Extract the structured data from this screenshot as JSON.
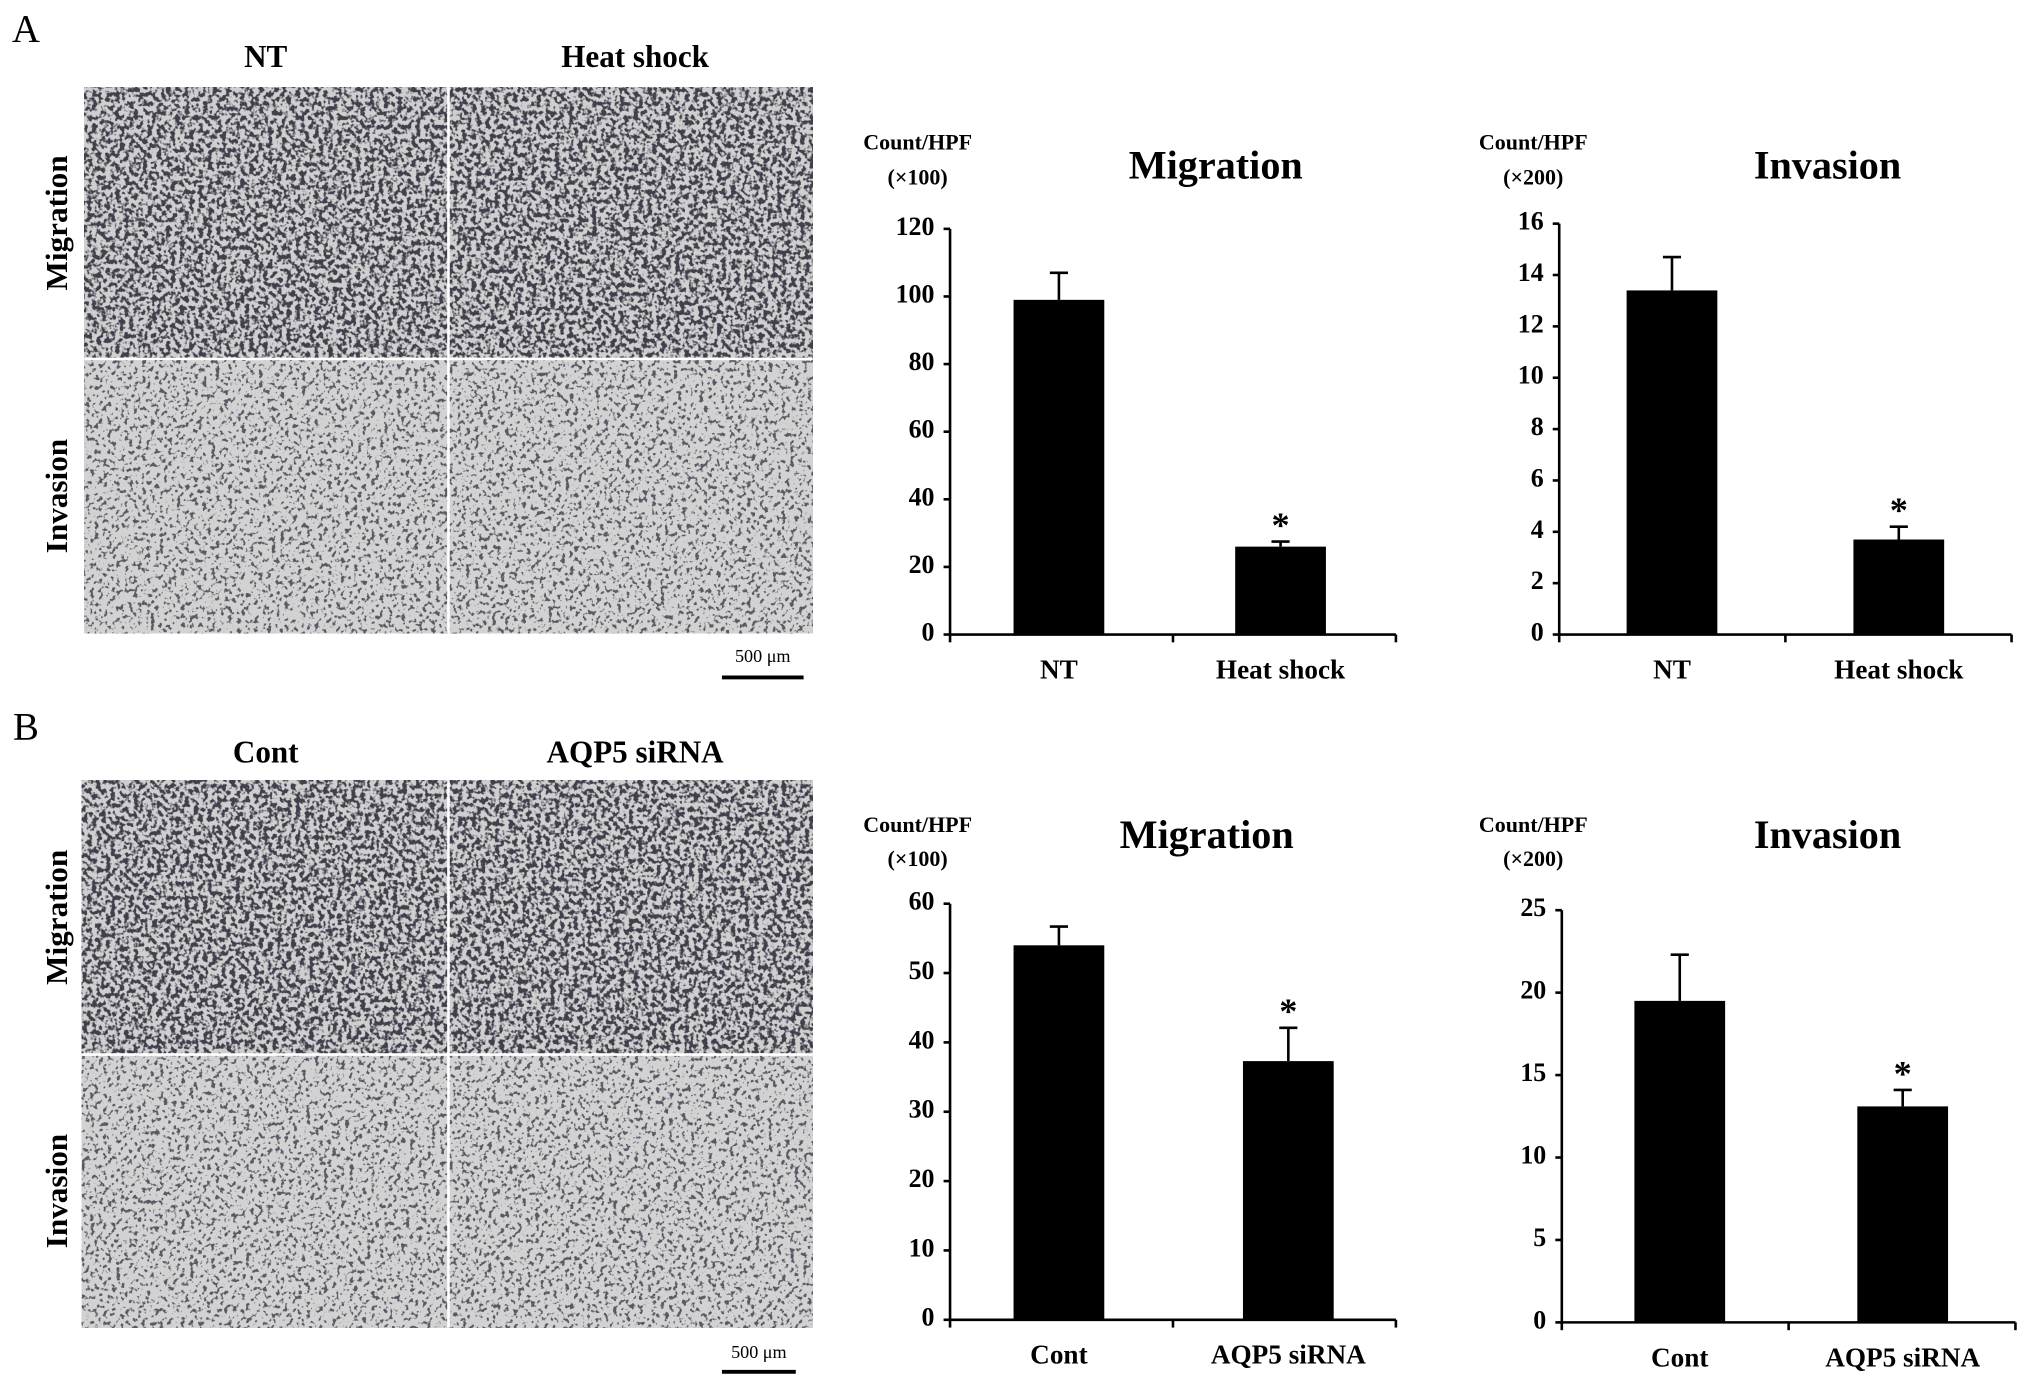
{
  "panels": [
    {
      "label": "A",
      "columns": [
        "NT",
        "Heat shock"
      ],
      "rows": [
        "Migration",
        "Invasion"
      ],
      "scale_bar": "500 μm"
    },
    {
      "label": "B",
      "columns": [
        "Cont",
        "AQP5 siRNA"
      ],
      "rows": [
        "Migration",
        "Invasion"
      ],
      "scale_bar": "500 μm"
    }
  ],
  "chart_data": [
    {
      "type": "bar",
      "title": "Migration",
      "y_label": [
        "Count/HPF",
        "(×100)"
      ],
      "categories": [
        "NT",
        "Heat shock"
      ],
      "values": [
        99,
        26
      ],
      "errors": [
        8,
        1.5
      ],
      "annotations": [
        null,
        "*"
      ],
      "color": "#000000",
      "ylim": [
        0,
        120
      ],
      "yticks": [
        0,
        20,
        40,
        60,
        80,
        100,
        120
      ]
    },
    {
      "type": "bar",
      "title": "Invasion",
      "y_label": [
        "Count/HPF",
        "(×200)"
      ],
      "categories": [
        "NT",
        "Heat shock"
      ],
      "values": [
        13.4,
        3.7
      ],
      "errors": [
        1.3,
        0.5
      ],
      "annotations": [
        null,
        "*"
      ],
      "color": "#000000",
      "ylim": [
        0,
        16
      ],
      "yticks": [
        0,
        2,
        4,
        6,
        8,
        10,
        12,
        14,
        16
      ]
    },
    {
      "type": "bar",
      "title": "Migration",
      "y_label": [
        "Count/HPF",
        "(×100)"
      ],
      "categories": [
        "Cont",
        "AQP5 siRNA"
      ],
      "values": [
        54,
        37.3
      ],
      "errors": [
        2.7,
        4.8
      ],
      "annotations": [
        null,
        "*"
      ],
      "color": "#000000",
      "ylim": [
        0,
        60
      ],
      "yticks": [
        0,
        10,
        20,
        30,
        40,
        50,
        60
      ]
    },
    {
      "type": "bar",
      "title": "Invasion",
      "y_label": [
        "Count/HPF",
        "(×200)"
      ],
      "categories": [
        "Cont",
        "AQP5 siRNA"
      ],
      "values": [
        19.5,
        13.1
      ],
      "errors": [
        2.8,
        1.0
      ],
      "annotations": [
        null,
        "*"
      ],
      "color": "#000000",
      "ylim": [
        0,
        25
      ],
      "yticks": [
        0,
        5,
        10,
        15,
        20,
        25
      ]
    }
  ]
}
